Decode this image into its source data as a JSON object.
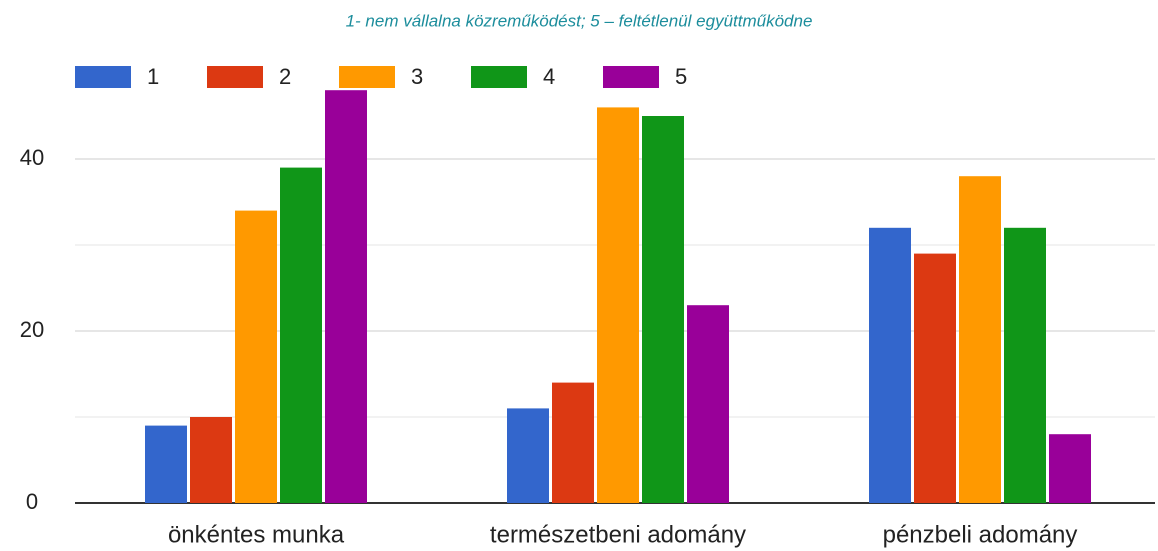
{
  "chart_data": {
    "type": "bar",
    "subtitle": "1- nem vállalna közreműködést; 5 – feltétlenül együttműködne",
    "categories": [
      "önkéntes munka",
      "természetbeni adomány",
      "pénzbeli adomány"
    ],
    "series": [
      {
        "name": "1",
        "color": "#3366cc",
        "values": [
          9,
          11,
          32
        ]
      },
      {
        "name": "2",
        "color": "#dc3912",
        "values": [
          10,
          14,
          29
        ]
      },
      {
        "name": "3",
        "color": "#ff9900",
        "values": [
          34,
          46,
          38
        ]
      },
      {
        "name": "4",
        "color": "#109618",
        "values": [
          39,
          45,
          32
        ]
      },
      {
        "name": "5",
        "color": "#990099",
        "values": [
          48,
          23,
          8
        ]
      }
    ],
    "ylim": [
      0,
      50
    ],
    "yticks": [
      0,
      20,
      40
    ],
    "yminorticks": [
      10,
      30
    ],
    "grid": true,
    "legend": "top-left"
  }
}
